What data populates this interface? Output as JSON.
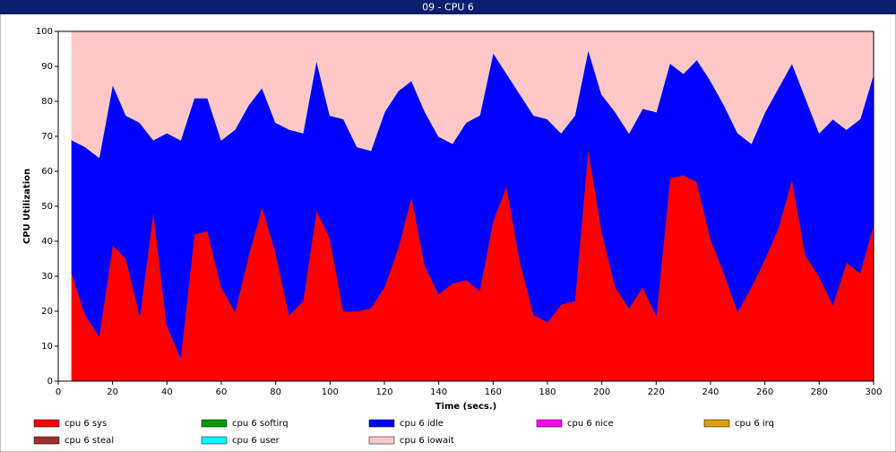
{
  "chart_data": {
    "type": "stacked_area",
    "title": "09 - CPU 6",
    "x_label": "Time (secs.)",
    "y_label": "CPU Utilization",
    "x": [
      5,
      10,
      15,
      20,
      25,
      30,
      35,
      40,
      45,
      50,
      55,
      60,
      65,
      70,
      75,
      80,
      85,
      90,
      95,
      100,
      105,
      110,
      115,
      120,
      125,
      130,
      135,
      140,
      145,
      150,
      155,
      160,
      165,
      170,
      175,
      180,
      185,
      190,
      195,
      200,
      205,
      210,
      215,
      220,
      225,
      230,
      235,
      240,
      245,
      250,
      255,
      260,
      265,
      270,
      275,
      280,
      285,
      290,
      295,
      300
    ],
    "series": [
      {
        "name": "cpu 6 sys",
        "color": "#ff0000",
        "values": [
          31,
          19,
          13,
          39,
          35,
          19,
          49,
          16,
          7,
          42,
          43,
          27,
          20,
          36,
          50,
          37,
          19,
          23,
          49,
          41,
          20,
          20,
          21,
          27,
          38,
          53,
          33,
          25,
          28,
          29,
          26,
          46,
          56,
          34,
          19,
          17,
          22,
          23,
          67,
          43,
          27,
          21,
          27,
          19,
          58,
          59,
          57,
          41,
          31,
          20,
          27,
          35,
          44,
          58,
          36,
          30,
          22,
          34,
          31,
          45
        ]
      },
      {
        "name": "cpu 6 softirq",
        "color": "#009900",
        "values": [
          0,
          0,
          0,
          0,
          0,
          0,
          0,
          0,
          0,
          0,
          0,
          0,
          0,
          0,
          0,
          0,
          0,
          0,
          0,
          0,
          0,
          0,
          0,
          0,
          0,
          0,
          0,
          0,
          0,
          0,
          0,
          0,
          0,
          0,
          0,
          0,
          0,
          0,
          0,
          0,
          0,
          0,
          0,
          0,
          0,
          0,
          0,
          0,
          0,
          0,
          0,
          0,
          0,
          0,
          0,
          0,
          0,
          0,
          0,
          0
        ]
      },
      {
        "name": "cpu 6 idle",
        "color": "#0000ff",
        "values": [
          38,
          48,
          51,
          46,
          41,
          55,
          20,
          55,
          62,
          39,
          38,
          42,
          52,
          43,
          34,
          37,
          53,
          48,
          43,
          35,
          55,
          47,
          45,
          50,
          45,
          33,
          44,
          45,
          40,
          45,
          50,
          48,
          32,
          48,
          57,
          58,
          49,
          53,
          28,
          39,
          50,
          50,
          51,
          58,
          33,
          29,
          35,
          45,
          48,
          51,
          41,
          42,
          40,
          33,
          45,
          41,
          53,
          38,
          44,
          43
        ]
      },
      {
        "name": "cpu 6 nice",
        "color": "#ff00ff",
        "values": [
          0,
          0,
          0,
          0,
          0,
          0,
          0,
          0,
          0,
          0,
          0,
          0,
          0,
          0,
          0,
          0,
          0,
          0,
          0,
          0,
          0,
          0,
          0,
          0,
          0,
          0,
          0,
          0,
          0,
          0,
          0,
          0,
          0,
          0,
          0,
          0,
          0,
          0,
          0,
          0,
          0,
          0,
          0,
          0,
          0,
          0,
          0,
          0,
          0,
          0,
          0,
          0,
          0,
          0,
          0,
          0,
          0,
          0,
          0,
          0
        ]
      },
      {
        "name": "cpu 6 irq",
        "color": "#e0a000",
        "values": [
          0,
          0,
          0,
          0,
          0,
          0,
          0,
          0,
          0,
          0,
          0,
          0,
          0,
          0,
          0,
          0,
          0,
          0,
          0,
          0,
          0,
          0,
          0,
          0,
          0,
          0,
          0,
          0,
          0,
          0,
          0,
          0,
          0,
          0,
          0,
          0,
          0,
          0,
          0,
          0,
          0,
          0,
          0,
          0,
          0,
          0,
          0,
          0,
          0,
          0,
          0,
          0,
          0,
          0,
          0,
          0,
          0,
          0,
          0,
          0
        ]
      },
      {
        "name": "cpu 6 steal",
        "color": "#a03030",
        "values": [
          0,
          0,
          0,
          0,
          0,
          0,
          0,
          0,
          0,
          0,
          0,
          0,
          0,
          0,
          0,
          0,
          0,
          0,
          0,
          0,
          0,
          0,
          0,
          0,
          0,
          0,
          0,
          0,
          0,
          0,
          0,
          0,
          0,
          0,
          0,
          0,
          0,
          0,
          0,
          0,
          0,
          0,
          0,
          0,
          0,
          0,
          0,
          0,
          0,
          0,
          0,
          0,
          0,
          0,
          0,
          0,
          0,
          0,
          0,
          0
        ]
      },
      {
        "name": "cpu 6 user",
        "color": "#00ffff",
        "values": [
          0,
          0,
          0,
          0,
          0,
          0,
          0,
          0,
          0,
          0,
          0,
          0,
          0,
          0,
          0,
          0,
          0,
          0,
          0,
          0,
          0,
          0,
          0,
          0,
          0,
          0,
          0,
          0,
          0,
          0,
          0,
          0,
          0,
          0,
          0,
          0,
          0,
          0,
          0,
          0,
          0,
          0,
          0,
          0,
          0,
          0,
          0,
          0,
          0,
          0,
          0,
          0,
          0,
          0,
          0,
          0,
          0,
          0,
          0,
          0
        ]
      },
      {
        "name": "cpu 6 iowait",
        "color": "#ffc8c8",
        "values": [
          31,
          33,
          36,
          15,
          24,
          26,
          31,
          29,
          31,
          19,
          19,
          31,
          28,
          21,
          16,
          26,
          28,
          29,
          8,
          24,
          25,
          33,
          34,
          23,
          17,
          14,
          23,
          30,
          32,
          26,
          24,
          6,
          12,
          18,
          24,
          25,
          29,
          24,
          5,
          18,
          23,
          29,
          22,
          23,
          9,
          12,
          8,
          14,
          21,
          29,
          32,
          23,
          16,
          9,
          19,
          29,
          25,
          28,
          25,
          12
        ]
      }
    ],
    "xlim": [
      0,
      300
    ],
    "xticks": [
      0,
      20,
      40,
      60,
      80,
      100,
      120,
      140,
      160,
      180,
      200,
      220,
      240,
      260,
      280,
      300
    ],
    "ylim": [
      0,
      100
    ],
    "yticks": [
      0,
      10,
      20,
      30,
      40,
      50,
      60,
      70,
      80,
      90,
      100
    ]
  }
}
